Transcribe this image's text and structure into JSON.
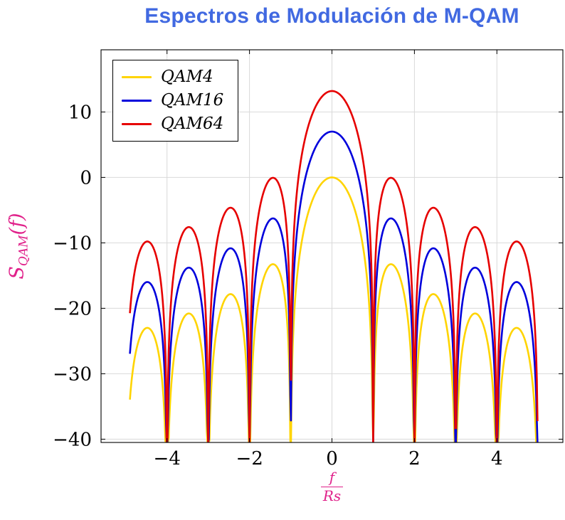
{
  "title": {
    "text": "Espectros de Modulación de M-QAM",
    "color": "#4169E1"
  },
  "axes": {
    "x_label_num": "f",
    "x_label_den": "Rs",
    "y_label": {
      "base": "S",
      "sub": "QAM",
      "rest": "(f)"
    },
    "label_color": "#E0218A",
    "x_ticks": [
      -4,
      -2,
      0,
      2,
      4
    ],
    "y_ticks": [
      -40,
      -30,
      -20,
      -10,
      0,
      10
    ]
  },
  "legend": {
    "entries": [
      {
        "label": "QAM4",
        "color": "#FFD400"
      },
      {
        "label": "QAM16",
        "color": "#0000DC"
      },
      {
        "label": "QAM64",
        "color": "#E60000"
      }
    ]
  },
  "chart_data": {
    "type": "line",
    "title": "Espectros de Modulación de M-QAM",
    "xlabel": "f/Rs",
    "ylabel": "S_QAM(f)",
    "xlim": [
      -5.6,
      5.6
    ],
    "ylim": [
      -40.5,
      19.5
    ],
    "x_ticks": [
      -4,
      -2,
      0,
      2,
      4
    ],
    "y_ticks": [
      -40,
      -30,
      -20,
      -10,
      0,
      10
    ],
    "grid": "major",
    "legend_position": "top-left",
    "clip_min_db": -40.5,
    "x_domain": [
      -4.9,
      4.985
    ],
    "samples": 620,
    "formula": "S(f) = offset_db + 10*log10(sinc(f/Rs)^2), sinc(x) = sin(pi*x)/(pi*x)",
    "series": [
      {
        "name": "QAM4",
        "color": "#FFD400",
        "offset_db": 0,
        "peak_db": 0,
        "first_sidelobe_db": -13.3
      },
      {
        "name": "QAM16",
        "color": "#0000DC",
        "offset_db": 7,
        "peak_db": 7,
        "first_sidelobe_db": -6.3
      },
      {
        "name": "QAM64",
        "color": "#E60000",
        "offset_db": 13.2,
        "peak_db": 13.2,
        "first_sidelobe_db": -0.1
      }
    ]
  }
}
